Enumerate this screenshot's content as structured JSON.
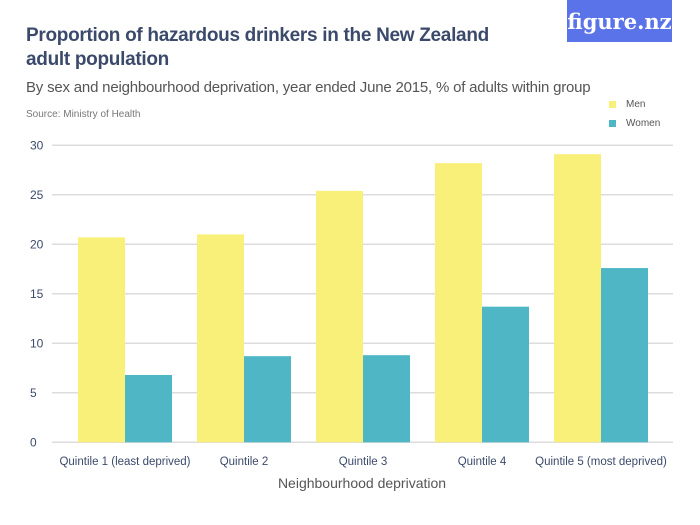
{
  "header": {
    "title": "Proportion of hazardous drinkers in the New Zealand adult population",
    "subtitle": "By sex and neighbourhood deprivation, year ended June 2015, % of adults within group",
    "source": "Source: Ministry of Health",
    "logo": "figure.nz"
  },
  "chart_data": {
    "type": "bar",
    "title": "Proportion of hazardous drinkers in the New Zealand adult population",
    "xlabel": "Neighbourhood deprivation",
    "ylabel": "",
    "ylim": [
      0,
      30
    ],
    "yticks": [
      0,
      5,
      10,
      15,
      20,
      25,
      30
    ],
    "grid": true,
    "legend_position": "top-right",
    "categories": [
      "Quintile 1 (least deprived)",
      "Quintile 2",
      "Quintile 3",
      "Quintile 4",
      "Quintile 5 (most deprived)"
    ],
    "series": [
      {
        "name": "Men",
        "color": "#f9f07a",
        "values": [
          20.7,
          21.0,
          25.4,
          28.2,
          29.1
        ]
      },
      {
        "name": "Women",
        "color": "#4fb6c6",
        "values": [
          6.8,
          8.7,
          8.8,
          13.7,
          17.6
        ]
      }
    ]
  }
}
